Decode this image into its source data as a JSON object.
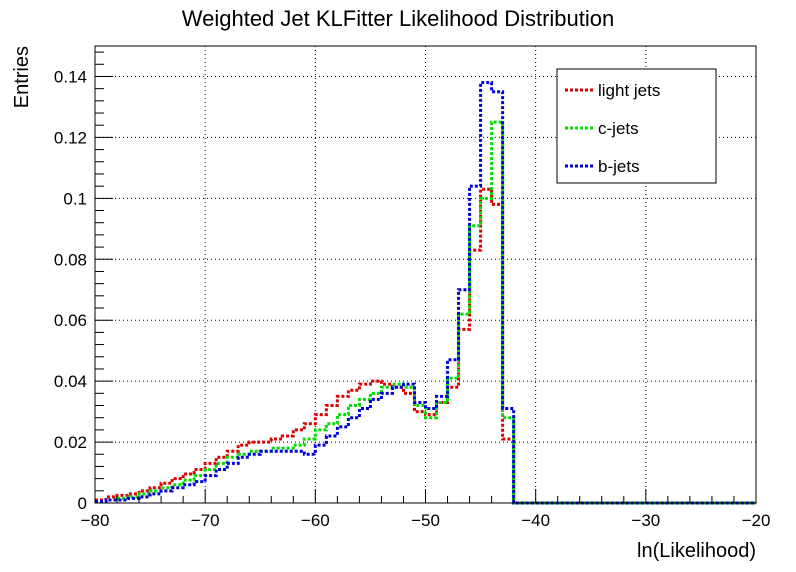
{
  "chart_data": {
    "type": "line",
    "title": "Weighted Jet KLFitter Likelihood Distribution",
    "xlabel": "ln(Likelihood)",
    "ylabel": "Entries",
    "xlim": [
      -80,
      -20
    ],
    "ylim": [
      0,
      0.15
    ],
    "grid": true,
    "legend_position": "top-right",
    "x_ticks": [
      -80,
      -70,
      -60,
      -50,
      -40,
      -30,
      -20
    ],
    "x_tick_labels": [
      "−80",
      "−70",
      "−60",
      "−50",
      "−40",
      "−30",
      "−20"
    ],
    "y_ticks": [
      0,
      0.02,
      0.04,
      0.06,
      0.08,
      0.1,
      0.12,
      0.14
    ],
    "y_tick_labels": [
      "0",
      "0.02",
      "0.04",
      "0.06",
      "0.08",
      "0.1",
      "0.12",
      "0.14"
    ],
    "bin_edges": [
      -80,
      -79,
      -78,
      -77,
      -76,
      -75,
      -74,
      -73,
      -72,
      -71,
      -70,
      -69,
      -68,
      -67,
      -66,
      -65,
      -64,
      -63,
      -62,
      -61,
      -60,
      -59,
      -58,
      -57,
      -56,
      -55,
      -54,
      -53,
      -52,
      -51,
      -50,
      -49,
      -48,
      -47,
      -46,
      -45,
      -44,
      -43,
      -42,
      -41,
      -40,
      -39,
      -38,
      -37,
      -36,
      -35,
      -34,
      -33,
      -32,
      -31,
      -30,
      -29,
      -28,
      -27,
      -26,
      -25,
      -24,
      -23,
      -22,
      -21,
      -20
    ],
    "series": [
      {
        "name": "light jets",
        "color": "#dd0000",
        "values": [
          0.001,
          0.002,
          0.0025,
          0.003,
          0.004,
          0.005,
          0.0065,
          0.008,
          0.0095,
          0.011,
          0.013,
          0.015,
          0.017,
          0.019,
          0.02,
          0.02,
          0.021,
          0.022,
          0.024,
          0.026,
          0.029,
          0.032,
          0.035,
          0.037,
          0.039,
          0.04,
          0.039,
          0.038,
          0.036,
          0.03,
          0.029,
          0.033,
          0.038,
          0.057,
          0.083,
          0.103,
          0.098,
          0.021,
          0,
          0,
          0,
          0,
          0,
          0,
          0,
          0,
          0,
          0,
          0,
          0,
          0,
          0,
          0,
          0,
          0,
          0,
          0,
          0,
          0,
          0
        ]
      },
      {
        "name": "c-jets",
        "color": "#00dd00",
        "values": [
          0.0005,
          0.001,
          0.0015,
          0.002,
          0.003,
          0.004,
          0.005,
          0.006,
          0.0075,
          0.009,
          0.011,
          0.013,
          0.015,
          0.016,
          0.017,
          0.017,
          0.018,
          0.018,
          0.019,
          0.021,
          0.024,
          0.026,
          0.029,
          0.032,
          0.034,
          0.036,
          0.038,
          0.039,
          0.038,
          0.032,
          0.028,
          0.033,
          0.041,
          0.062,
          0.091,
          0.1,
          0.125,
          0.028,
          0,
          0,
          0,
          0,
          0,
          0,
          0,
          0,
          0,
          0,
          0,
          0,
          0,
          0,
          0,
          0,
          0,
          0,
          0,
          0,
          0,
          0
        ]
      },
      {
        "name": "b-jets",
        "color": "#0000dd",
        "values": [
          0.0005,
          0.001,
          0.001,
          0.0015,
          0.002,
          0.003,
          0.004,
          0.005,
          0.006,
          0.007,
          0.009,
          0.011,
          0.013,
          0.015,
          0.016,
          0.017,
          0.017,
          0.017,
          0.017,
          0.016,
          0.019,
          0.022,
          0.025,
          0.028,
          0.031,
          0.034,
          0.036,
          0.038,
          0.039,
          0.033,
          0.031,
          0.035,
          0.047,
          0.07,
          0.104,
          0.138,
          0.135,
          0.031,
          0,
          0,
          0,
          0,
          0,
          0,
          0,
          0,
          0,
          0,
          0,
          0,
          0,
          0,
          0,
          0,
          0,
          0,
          0,
          0,
          0,
          0
        ]
      }
    ]
  }
}
